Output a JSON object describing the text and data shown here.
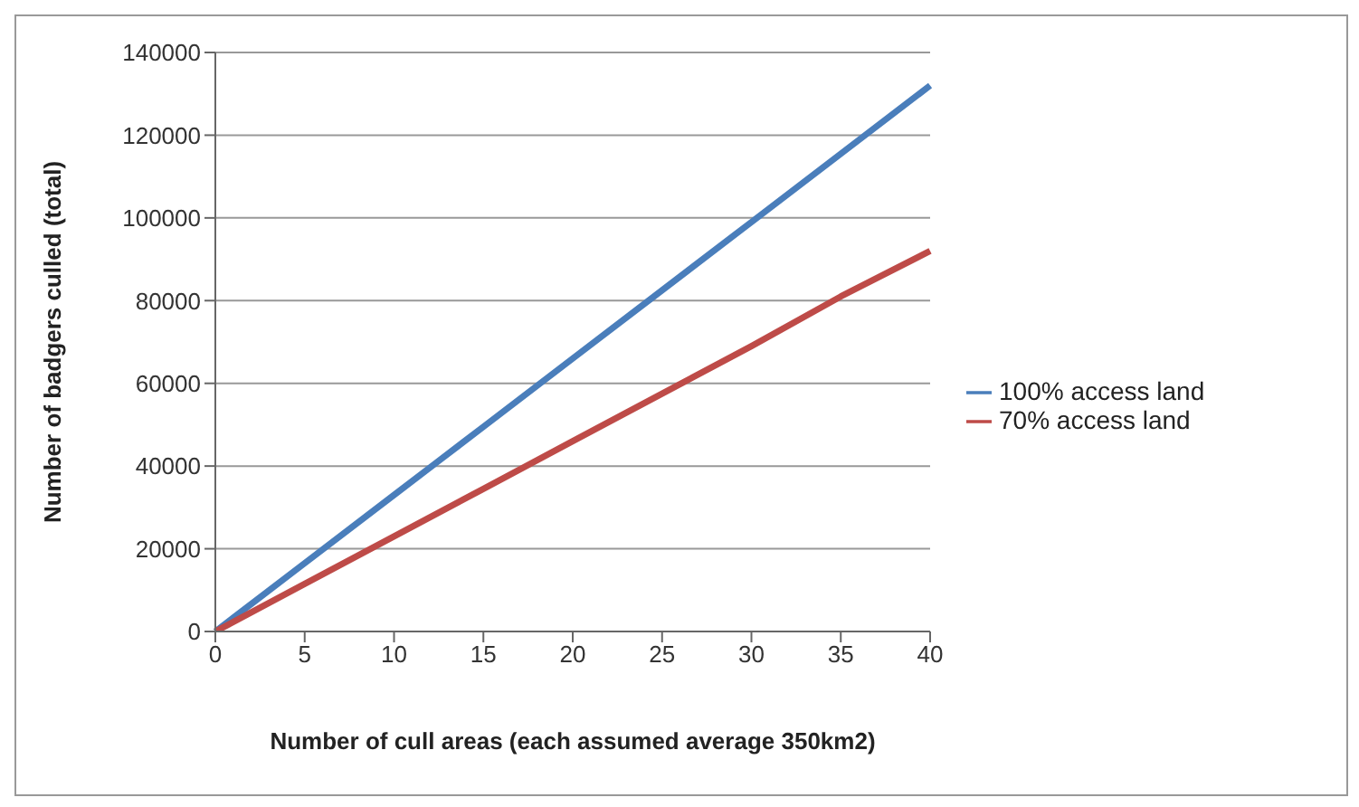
{
  "chart_data": {
    "type": "line",
    "xlabel": "Number of cull areas (each assumed average 350km2)",
    "ylabel": "Number of badgers culled (total)",
    "categories": [
      "0",
      "5",
      "10",
      "15",
      "20",
      "25",
      "30",
      "35",
      "40"
    ],
    "series": [
      {
        "name": "100% access land",
        "color": "#4a7ebb",
        "values": [
          0,
          16500,
          33000,
          49500,
          66000,
          82500,
          99000,
          115500,
          132000
        ]
      },
      {
        "name": "70% access land",
        "color": "#be4b48",
        "values": [
          0,
          11500,
          23000,
          34500,
          46000,
          57500,
          69000,
          81000,
          92000
        ]
      }
    ],
    "ylim": [
      0,
      140000
    ],
    "yticks": [
      0,
      20000,
      40000,
      60000,
      80000,
      100000,
      120000,
      140000
    ],
    "grid": "y",
    "legend": "right",
    "marker": "none",
    "line_style": "solid"
  }
}
